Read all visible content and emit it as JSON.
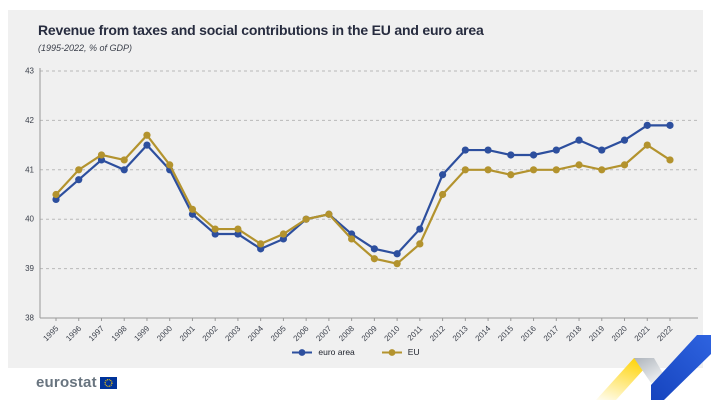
{
  "header": {
    "title": "Revenue from taxes and social contributions in the EU and euro area",
    "subtitle": "(1995-2022, % of GDP)"
  },
  "chart_data": {
    "type": "line",
    "x": [
      1995,
      1996,
      1997,
      1998,
      1999,
      2000,
      2001,
      2002,
      2003,
      2004,
      2005,
      2006,
      2007,
      2008,
      2009,
      2010,
      2011,
      2012,
      2013,
      2014,
      2015,
      2016,
      2017,
      2018,
      2019,
      2020,
      2021,
      2022
    ],
    "series": [
      {
        "name": "euro area",
        "color": "#2d4f9e",
        "values": [
          40.4,
          40.8,
          41.2,
          41.0,
          41.5,
          41.0,
          40.1,
          39.7,
          39.7,
          39.4,
          39.6,
          40.0,
          40.1,
          39.7,
          39.4,
          39.3,
          39.8,
          40.9,
          41.4,
          41.4,
          41.3,
          41.3,
          41.4,
          41.6,
          41.4,
          41.6,
          41.9,
          41.9
        ]
      },
      {
        "name": "EU",
        "color": "#b3932e",
        "values": [
          40.5,
          41.0,
          41.3,
          41.2,
          41.7,
          41.1,
          40.2,
          39.8,
          39.8,
          39.5,
          39.7,
          40.0,
          40.1,
          39.6,
          39.2,
          39.1,
          39.5,
          40.5,
          41.0,
          41.0,
          40.9,
          41.0,
          41.0,
          41.1,
          41.0,
          41.1,
          41.5,
          41.2
        ]
      }
    ],
    "ylim": [
      38,
      43
    ],
    "yticks": [
      38,
      39,
      40,
      41,
      42,
      43
    ],
    "grid": "horizontal dashed",
    "legend_position": "bottom"
  },
  "footer": {
    "logo_text": "eurostat"
  },
  "colors": {
    "panel_bg": "#f0f0f0",
    "title_text": "#272c3f",
    "grid": "#b9b9b9",
    "axis": "#999999",
    "tick_text": "#3a3f4a",
    "euro_area": "#2d4f9e",
    "eu": "#b3932e",
    "ribbon_yellow": "#ffd617",
    "ribbon_gray": "#aeb4bb",
    "ribbon_blue": "#1644be",
    "flag_blue": "#003399",
    "flag_stars": "#ffcc00",
    "logo_text_color": "#68747f"
  }
}
